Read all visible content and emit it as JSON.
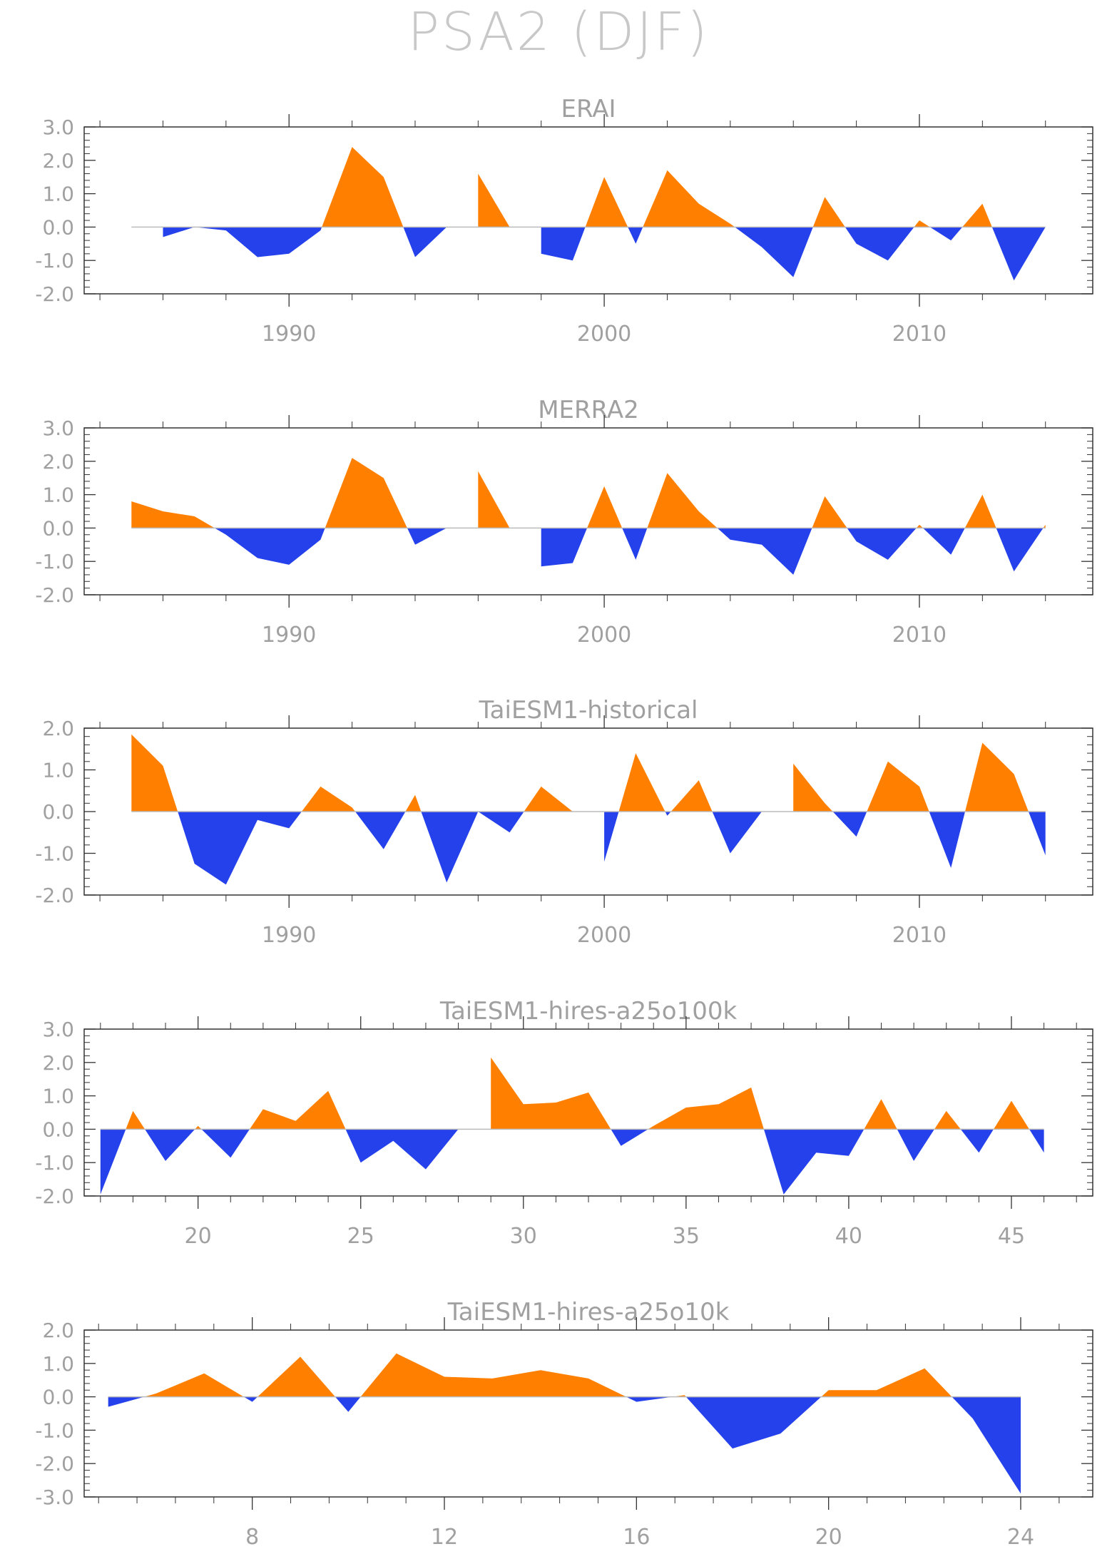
{
  "title": "PSA2 (DJF)",
  "colors": {
    "positive": "#ff8000",
    "negative": "#2541ec",
    "axis": "#333333",
    "text": "#a0a0a0",
    "zero_line": "#bbbbbb"
  },
  "chart_data": [
    {
      "type": "area",
      "title": "ERAI",
      "xlim": [
        1983.5,
        2015.5
      ],
      "ylim": [
        -2.0,
        3.0
      ],
      "yticks": [
        -2.0,
        -1.0,
        0.0,
        1.0,
        2.0,
        3.0
      ],
      "ytick_labels": [
        "-2.0",
        "-1.0",
        "0.0",
        "1.0",
        "2.0",
        "3.0"
      ],
      "xticks": [
        1990,
        2000,
        2010
      ],
      "xtick_labels": [
        "1990",
        "2000",
        "2010"
      ],
      "x": [
        1985,
        1986,
        1987,
        1988,
        1989,
        1990,
        1991,
        1992,
        1993,
        1994,
        1995,
        1996,
        1997,
        1998,
        1999,
        2000,
        2001,
        2002,
        2003,
        2004,
        2005,
        2006,
        2007,
        2008,
        2009,
        2010,
        2011,
        2012,
        2013,
        2014
      ],
      "values": [
        0.0,
        -0.3,
        0.0,
        -0.1,
        -0.9,
        -0.8,
        -0.1,
        2.4,
        1.5,
        -0.9,
        0.0,
        1.6,
        0.0,
        -0.8,
        -1.0,
        1.5,
        -0.5,
        1.7,
        0.7,
        0.1,
        -0.6,
        -1.5,
        0.9,
        -0.5,
        -1.0,
        0.2,
        -0.4,
        0.7,
        -1.6,
        0.0
      ]
    },
    {
      "type": "area",
      "title": "MERRA2",
      "xlim": [
        1983.5,
        2015.5
      ],
      "ylim": [
        -2.0,
        3.0
      ],
      "yticks": [
        -2.0,
        -1.0,
        0.0,
        1.0,
        2.0,
        3.0
      ],
      "ytick_labels": [
        "-2.0",
        "-1.0",
        "0.0",
        "1.0",
        "2.0",
        "3.0"
      ],
      "xticks": [
        1990,
        2000,
        2010
      ],
      "xtick_labels": [
        "1990",
        "2000",
        "2010"
      ],
      "x": [
        1985,
        1986,
        1987,
        1988,
        1989,
        1990,
        1991,
        1992,
        1993,
        1994,
        1995,
        1996,
        1997,
        1998,
        1999,
        2000,
        2001,
        2002,
        2003,
        2004,
        2005,
        2006,
        2007,
        2008,
        2009,
        2010,
        2011,
        2012,
        2013,
        2014
      ],
      "values": [
        0.8,
        0.5,
        0.35,
        -0.2,
        -0.9,
        -1.1,
        -0.35,
        2.1,
        1.5,
        -0.5,
        0.0,
        1.7,
        0.0,
        -1.15,
        -1.05,
        1.25,
        -0.95,
        1.65,
        0.5,
        -0.35,
        -0.5,
        -1.4,
        0.95,
        -0.4,
        -0.95,
        0.1,
        -0.8,
        1.0,
        -1.3,
        0.1
      ]
    },
    {
      "type": "area",
      "title": "TaiESM1-historical",
      "xlim": [
        1983.5,
        2015.5
      ],
      "ylim": [
        -2.0,
        2.0
      ],
      "yticks": [
        -2.0,
        -1.0,
        0.0,
        1.0,
        2.0
      ],
      "ytick_labels": [
        "-2.0",
        "-1.0",
        "0.0",
        "1.0",
        "2.0"
      ],
      "xticks": [
        1990,
        2000,
        2010
      ],
      "xtick_labels": [
        "1990",
        "2000",
        "2010"
      ],
      "x": [
        1985,
        1986,
        1987,
        1988,
        1989,
        1990,
        1991,
        1992,
        1993,
        1994,
        1995,
        1996,
        1997,
        1998,
        1999,
        2000,
        2001,
        2002,
        2003,
        2004,
        2005,
        2006,
        2007,
        2008,
        2009,
        2010,
        2011,
        2012,
        2013,
        2014
      ],
      "values": [
        1.85,
        1.1,
        -1.25,
        -1.75,
        -0.2,
        -0.4,
        0.6,
        0.1,
        -0.9,
        0.4,
        -1.7,
        0.0,
        -0.5,
        0.6,
        0.0,
        -1.2,
        1.4,
        -0.1,
        0.75,
        -1.0,
        0.0,
        1.15,
        0.2,
        -0.6,
        1.2,
        0.6,
        -1.35,
        1.65,
        0.9,
        -1.05
      ]
    },
    {
      "type": "area",
      "title": "TaiESM1-hires-a25o100k",
      "xlim": [
        16.5,
        47.5
      ],
      "ylim": [
        -2.0,
        3.0
      ],
      "yticks": [
        -2.0,
        -1.0,
        0.0,
        1.0,
        2.0,
        3.0
      ],
      "ytick_labels": [
        "-2.0",
        "-1.0",
        "0.0",
        "1.0",
        "2.0",
        "3.0"
      ],
      "xticks": [
        20,
        25,
        30,
        35,
        40,
        45
      ],
      "xtick_labels": [
        "20",
        "25",
        "30",
        "35",
        "40",
        "45"
      ],
      "x": [
        17,
        18,
        19,
        20,
        21,
        22,
        23,
        24,
        25,
        26,
        27,
        28,
        29,
        30,
        31,
        32,
        33,
        34,
        35,
        36,
        37,
        38,
        39,
        40,
        41,
        42,
        43,
        44,
        45,
        46
      ],
      "values": [
        -1.95,
        0.55,
        -0.95,
        0.1,
        -0.85,
        0.6,
        0.25,
        1.15,
        -1.0,
        -0.35,
        -1.2,
        0.0,
        2.15,
        0.75,
        0.8,
        1.1,
        -0.5,
        0.1,
        0.65,
        0.75,
        1.25,
        -1.95,
        -0.7,
        -0.8,
        0.9,
        -0.95,
        0.55,
        -0.7,
        0.85,
        -0.7
      ]
    },
    {
      "type": "area",
      "title": "TaiESM1-hires-a25o10k",
      "xlim": [
        4.5,
        25.5
      ],
      "ylim": [
        -3.0,
        2.0
      ],
      "yticks": [
        -3.0,
        -2.0,
        -1.0,
        0.0,
        1.0,
        2.0
      ],
      "ytick_labels": [
        "-3.0",
        "-2.0",
        "-1.0",
        "0.0",
        "1.0",
        "2.0"
      ],
      "xticks": [
        8,
        12,
        16,
        20,
        24
      ],
      "xtick_labels": [
        "8",
        "12",
        "16",
        "20",
        "24"
      ],
      "x": [
        5,
        6,
        7,
        8,
        9,
        10,
        11,
        12,
        13,
        14,
        15,
        16,
        17,
        18,
        19,
        20,
        21,
        22,
        23,
        24
      ],
      "values": [
        -0.3,
        0.1,
        0.7,
        -0.15,
        1.2,
        -0.45,
        1.3,
        0.6,
        0.55,
        0.8,
        0.55,
        -0.15,
        0.05,
        -1.55,
        -1.1,
        0.2,
        0.2,
        0.85,
        -0.65,
        -2.9
      ]
    }
  ]
}
